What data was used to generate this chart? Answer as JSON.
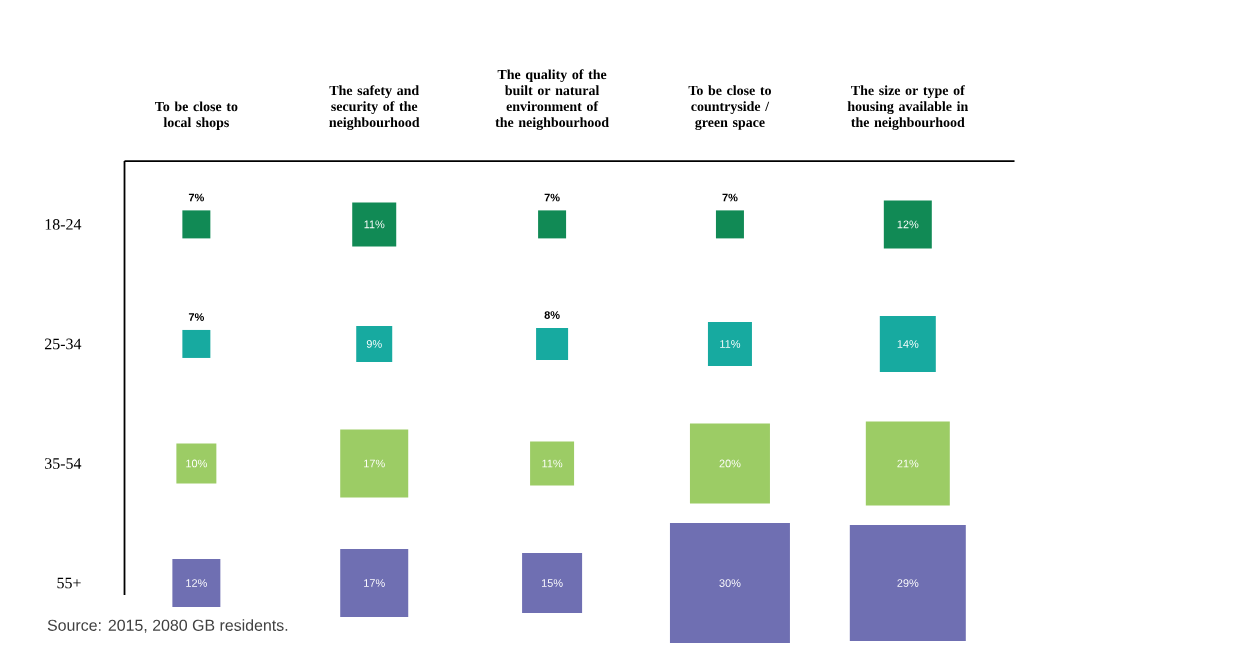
{
  "chart_data": {
    "type": "heatmap",
    "categories": [
      "To be close to local shops",
      "The safety and security of the neighbourhood",
      "The quality of the built or natural environment of the neighbourhood",
      "To be close to countryside / green space",
      "The size or type of housing available in the neighbourhood"
    ],
    "y_categories": [
      "18-24",
      "25-34",
      "35-54",
      "55+"
    ],
    "cells": [
      [
        7,
        11,
        7,
        7,
        12
      ],
      [
        7,
        9,
        8,
        11,
        14
      ],
      [
        10,
        17,
        11,
        20,
        21
      ],
      [
        12,
        17,
        15,
        30,
        29
      ]
    ],
    "cell_labels": [
      [
        "7%",
        "11%",
        "7%",
        "7%",
        "12%"
      ],
      [
        "7%",
        "9%",
        "8%",
        "11%",
        "14%"
      ],
      [
        "10%",
        "17%",
        "11%",
        "20%",
        "21%"
      ],
      [
        "12%",
        "17%",
        "15%",
        "30%",
        "29%"
      ]
    ],
    "colors": [
      "#118a55",
      "#17aaa0",
      "#9ccc65",
      "#6f6fb2"
    ],
    "annotations": [
      "Source: 2015, 2080 GB residents."
    ]
  }
}
